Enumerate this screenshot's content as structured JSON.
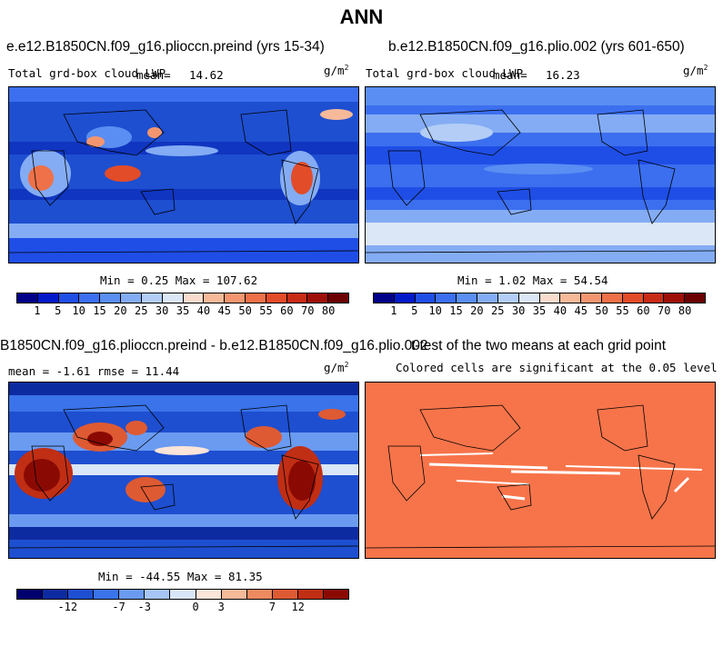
{
  "title": "ANN",
  "panels": [
    {
      "title": "e.e12.B1850CN.f09_g16.plioccn.preind (yrs 15-34)",
      "variable": "Total grd-box cloud LWP",
      "mean_label": "mean=",
      "mean_value": "14.62",
      "units": "g/m",
      "units_exp": "2",
      "min_max": "Min =    0.25 Max = 107.62",
      "scale": "abs"
    },
    {
      "title": "b.e12.B1850CN.f09_g16.plio.002 (yrs 601-650)",
      "variable": "Total grd-box cloud LWP",
      "mean_label": "mean=",
      "mean_value": "16.23",
      "units": "g/m",
      "units_exp": "2",
      "min_max": "Min =    1.02 Max =  54.54",
      "scale": "abs"
    },
    {
      "title": "B1850CN.f09_g16.plioccn.preind - b.e12.B1850CN.f09_g16.plio.002",
      "stats": "mean =   -1.61     rmse =   11.44",
      "units": "g/m",
      "units_exp": "2",
      "min_max": "Min = -44.55 Max =  81.35",
      "scale": "diff"
    },
    {
      "title": "t-test of the two means at each grid point",
      "subtitle": "Colored cells are significant at the 0.05 level",
      "fill_color": "#f7744a"
    }
  ],
  "colorbars": {
    "abs": {
      "colors": [
        "#000089",
        "#0019c9",
        "#1f4ee6",
        "#3c6fef",
        "#5a8ef2",
        "#84acf4",
        "#b3cdf6",
        "#dbe6f7",
        "#f9dccd",
        "#f6b99a",
        "#f39670",
        "#ee7149",
        "#e24c28",
        "#c82b15",
        "#9e0f07",
        "#6b0000"
      ],
      "labels": [
        "1",
        "5",
        "10",
        "15",
        "20",
        "25",
        "30",
        "35",
        "40",
        "45",
        "50",
        "55",
        "60",
        "70",
        "80"
      ]
    },
    "diff": {
      "colors": [
        "#00006e",
        "#0d2ba0",
        "#1e4fd0",
        "#3a73ea",
        "#6a9bf1",
        "#a6c5f5",
        "#d9e6f8",
        "#fbe4d8",
        "#f6b99a",
        "#ee8a60",
        "#de5a33",
        "#c02e14",
        "#8a0a03"
      ],
      "labels": [
        "-12",
        "-7",
        "-3",
        "0",
        "3",
        "7",
        "12"
      ]
    }
  }
}
